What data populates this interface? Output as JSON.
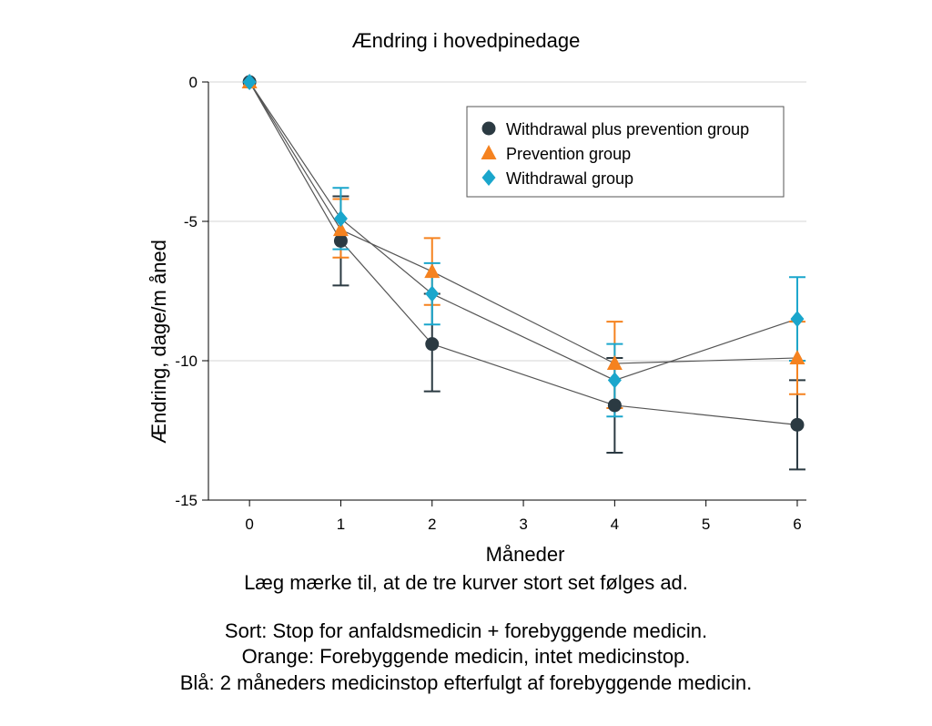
{
  "chart_data": {
    "type": "line",
    "title": "Ændring i hovedpinedage",
    "xlabel": "Måneder",
    "ylabel": "Ændring, dage/m åned",
    "x_ticks": [
      0,
      1,
      2,
      3,
      4,
      5,
      6
    ],
    "xlim": [
      -0.45,
      6.1
    ],
    "y_ticks": [
      0,
      -5,
      -10,
      -15
    ],
    "ylim": [
      -15,
      0
    ],
    "grid": "horizontal",
    "legend_position": "top-right",
    "series": [
      {
        "name": "Withdrawal plus prevention group",
        "marker": "circle",
        "color": "#2b3a42",
        "points": [
          {
            "x": 0,
            "y": 0,
            "lo": null,
            "hi": null
          },
          {
            "x": 1,
            "y": -5.7,
            "lo": -7.3,
            "hi": -4.1
          },
          {
            "x": 2,
            "y": -9.4,
            "lo": -11.1,
            "hi": -7.6
          },
          {
            "x": 4,
            "y": -11.6,
            "lo": -13.3,
            "hi": -9.9
          },
          {
            "x": 6,
            "y": -12.3,
            "lo": -13.9,
            "hi": -10.7
          }
        ]
      },
      {
        "name": "Prevention group",
        "marker": "triangle",
        "color": "#f5821f",
        "points": [
          {
            "x": 0,
            "y": 0,
            "lo": null,
            "hi": null
          },
          {
            "x": 1,
            "y": -5.3,
            "lo": -6.3,
            "hi": -4.2
          },
          {
            "x": 2,
            "y": -6.8,
            "lo": -8.0,
            "hi": -5.6
          },
          {
            "x": 4,
            "y": -10.1,
            "lo": -11.7,
            "hi": -8.6
          },
          {
            "x": 6,
            "y": -9.9,
            "lo": -11.2,
            "hi": -8.6
          }
        ]
      },
      {
        "name": "Withdrawal group",
        "marker": "diamond",
        "color": "#1aa6cc",
        "points": [
          {
            "x": 0,
            "y": 0,
            "lo": null,
            "hi": null
          },
          {
            "x": 1,
            "y": -4.9,
            "lo": -6.0,
            "hi": -3.8
          },
          {
            "x": 2,
            "y": -7.6,
            "lo": -8.7,
            "hi": -6.5
          },
          {
            "x": 4,
            "y": -10.7,
            "lo": -12.0,
            "hi": -9.4
          },
          {
            "x": 6,
            "y": -8.5,
            "lo": -10.0,
            "hi": -7.0
          }
        ]
      }
    ]
  },
  "captions": {
    "note": "Læg mærke til, at de tre kurver stort set følges ad.",
    "black": "Sort: Stop for anfaldsmedicin + forebyggende medicin.",
    "orange": "Orange: Forebyggende medicin, intet medicinstop.",
    "blue": "Blå: 2 måneders medicinstop efterfulgt af forebyggende medicin."
  }
}
